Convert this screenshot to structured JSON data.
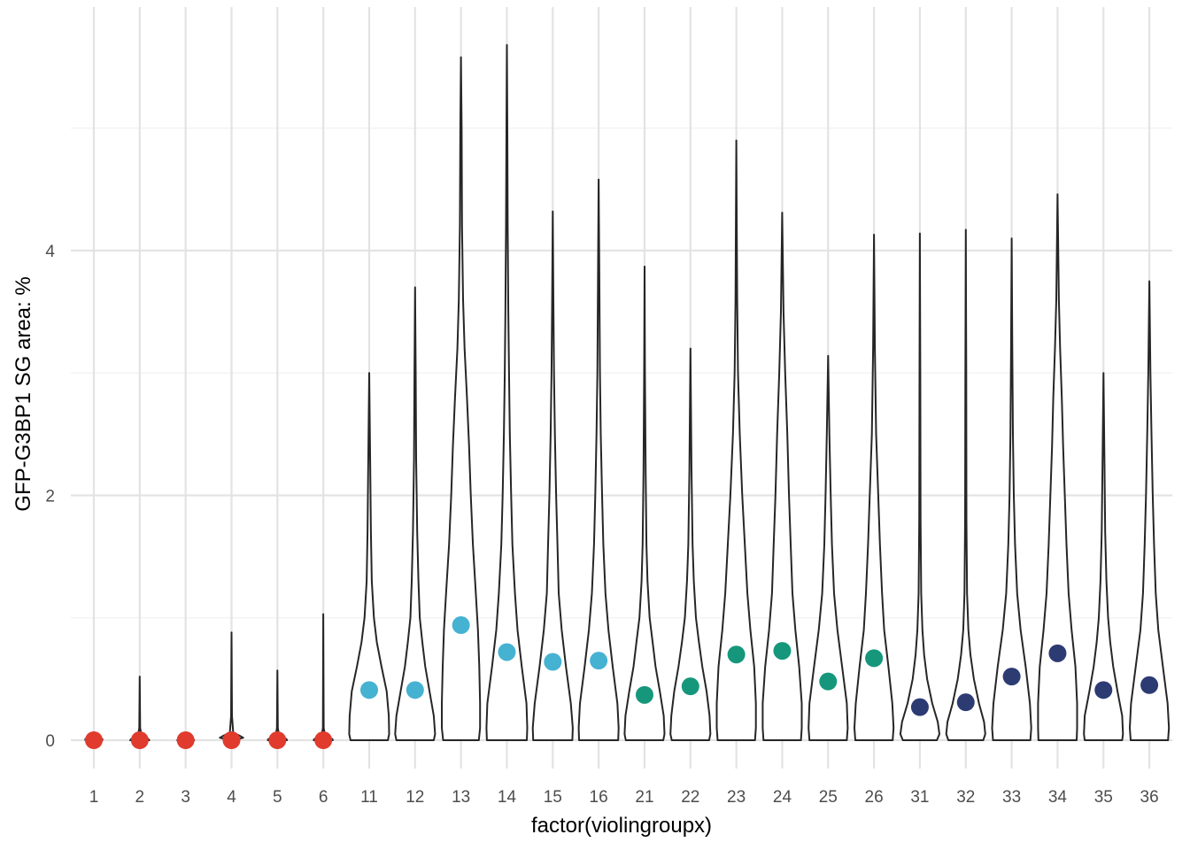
{
  "chart_data": {
    "type": "violin",
    "xlabel": "factor(violingroupx)",
    "ylabel": "GFP-G3BP1 SG area: %",
    "ylim": [
      -0.5,
      5.85
    ],
    "yticks": [
      0,
      2,
      4
    ],
    "grid": true,
    "legend": "none",
    "categories": [
      "1",
      "2",
      "3",
      "4",
      "5",
      "6",
      "11",
      "12",
      "13",
      "14",
      "15",
      "16",
      "21",
      "22",
      "23",
      "24",
      "25",
      "26",
      "31",
      "32",
      "33",
      "34",
      "35",
      "36"
    ],
    "colors": [
      "#e03b2d",
      "#e03b2d",
      "#e03b2d",
      "#e03b2d",
      "#e03b2d",
      "#e03b2d",
      "#46b2d2",
      "#46b2d2",
      "#46b2d2",
      "#46b2d2",
      "#46b2d2",
      "#46b2d2",
      "#16977c",
      "#16977c",
      "#16977c",
      "#16977c",
      "#16977c",
      "#16977c",
      "#2d3b73",
      "#2d3b73",
      "#2d3b73",
      "#2d3b73",
      "#2d3b73",
      "#2d3b73"
    ],
    "medians": [
      0.0,
      0.0,
      0.0,
      0.0,
      0.0,
      0.0,
      0.41,
      0.41,
      0.94,
      0.72,
      0.64,
      0.65,
      0.37,
      0.44,
      0.7,
      0.73,
      0.48,
      0.67,
      0.27,
      0.31,
      0.52,
      0.71,
      0.41,
      0.45
    ],
    "max": [
      0.02,
      0.52,
      0.01,
      0.88,
      0.57,
      1.03,
      3.0,
      3.7,
      5.58,
      5.68,
      4.32,
      4.58,
      3.87,
      3.2,
      4.9,
      4.31,
      3.14,
      4.13,
      4.14,
      4.17,
      4.1,
      4.46,
      3.0,
      3.75
    ],
    "profiles": [
      [
        [
          0,
          0.4
        ],
        [
          0.01,
          0.4
        ],
        [
          0.02,
          0.0
        ]
      ],
      [
        [
          0,
          0.45
        ],
        [
          0.01,
          0.4
        ],
        [
          0.02,
          0.1
        ],
        [
          0.1,
          0.02
        ],
        [
          0.52,
          0.0
        ]
      ],
      [
        [
          0,
          0.4
        ],
        [
          0.01,
          0.35
        ],
        [
          0.01,
          0.0
        ]
      ],
      [
        [
          0,
          0.12
        ],
        [
          0.02,
          0.55
        ],
        [
          0.04,
          0.35
        ],
        [
          0.06,
          0.08
        ],
        [
          0.2,
          0.02
        ],
        [
          0.88,
          0.0
        ]
      ],
      [
        [
          0,
          0.45
        ],
        [
          0.01,
          0.42
        ],
        [
          0.02,
          0.1
        ],
        [
          0.1,
          0.02
        ],
        [
          0.57,
          0.0
        ]
      ],
      [
        [
          0,
          0.45
        ],
        [
          0.01,
          0.42
        ],
        [
          0.02,
          0.1
        ],
        [
          0.1,
          0.02
        ],
        [
          1.03,
          0.0
        ]
      ],
      [
        [
          0,
          0.88
        ],
        [
          0.05,
          0.94
        ],
        [
          0.2,
          0.92
        ],
        [
          0.4,
          0.82
        ],
        [
          0.6,
          0.58
        ],
        [
          0.8,
          0.36
        ],
        [
          1.0,
          0.22
        ],
        [
          1.3,
          0.12
        ],
        [
          1.7,
          0.08
        ],
        [
          2.2,
          0.05
        ],
        [
          3.0,
          0.0
        ]
      ],
      [
        [
          0,
          0.88
        ],
        [
          0.05,
          0.94
        ],
        [
          0.2,
          0.88
        ],
        [
          0.4,
          0.68
        ],
        [
          0.6,
          0.48
        ],
        [
          0.8,
          0.34
        ],
        [
          1.0,
          0.22
        ],
        [
          1.3,
          0.16
        ],
        [
          1.7,
          0.1
        ],
        [
          2.3,
          0.05
        ],
        [
          3.0,
          0.03
        ],
        [
          3.7,
          0.0
        ]
      ],
      [
        [
          0,
          0.84
        ],
        [
          0.1,
          0.9
        ],
        [
          0.3,
          0.9
        ],
        [
          0.6,
          0.86
        ],
        [
          0.9,
          0.8
        ],
        [
          1.2,
          0.7
        ],
        [
          1.6,
          0.56
        ],
        [
          2.0,
          0.46
        ],
        [
          2.4,
          0.38
        ],
        [
          2.8,
          0.28
        ],
        [
          3.2,
          0.17
        ],
        [
          3.6,
          0.1
        ],
        [
          4.2,
          0.05
        ],
        [
          5.0,
          0.03
        ],
        [
          5.58,
          0.0
        ]
      ],
      [
        [
          0,
          0.94
        ],
        [
          0.1,
          0.96
        ],
        [
          0.3,
          0.92
        ],
        [
          0.6,
          0.7
        ],
        [
          0.9,
          0.5
        ],
        [
          1.2,
          0.38
        ],
        [
          1.6,
          0.26
        ],
        [
          2.0,
          0.2
        ],
        [
          2.5,
          0.14
        ],
        [
          3.0,
          0.1
        ],
        [
          3.5,
          0.07
        ],
        [
          4.2,
          0.04
        ],
        [
          5.0,
          0.02
        ],
        [
          5.68,
          0.0
        ]
      ],
      [
        [
          0,
          0.92
        ],
        [
          0.1,
          0.94
        ],
        [
          0.3,
          0.85
        ],
        [
          0.6,
          0.62
        ],
        [
          0.9,
          0.42
        ],
        [
          1.2,
          0.28
        ],
        [
          1.6,
          0.22
        ],
        [
          2.0,
          0.16
        ],
        [
          2.5,
          0.1
        ],
        [
          3.0,
          0.06
        ],
        [
          3.6,
          0.03
        ],
        [
          4.32,
          0.0
        ]
      ],
      [
        [
          0,
          0.92
        ],
        [
          0.1,
          0.94
        ],
        [
          0.3,
          0.88
        ],
        [
          0.6,
          0.66
        ],
        [
          0.9,
          0.46
        ],
        [
          1.2,
          0.32
        ],
        [
          1.6,
          0.22
        ],
        [
          2.0,
          0.16
        ],
        [
          2.5,
          0.1
        ],
        [
          3.0,
          0.06
        ],
        [
          3.8,
          0.03
        ],
        [
          4.58,
          0.0
        ]
      ],
      [
        [
          0,
          0.88
        ],
        [
          0.05,
          0.94
        ],
        [
          0.2,
          0.9
        ],
        [
          0.4,
          0.72
        ],
        [
          0.6,
          0.52
        ],
        [
          0.8,
          0.38
        ],
        [
          1.0,
          0.24
        ],
        [
          1.3,
          0.14
        ],
        [
          1.6,
          0.09
        ],
        [
          2.2,
          0.05
        ],
        [
          3.0,
          0.02
        ],
        [
          3.87,
          0.0
        ]
      ],
      [
        [
          0,
          0.88
        ],
        [
          0.05,
          0.94
        ],
        [
          0.2,
          0.9
        ],
        [
          0.4,
          0.76
        ],
        [
          0.6,
          0.56
        ],
        [
          0.8,
          0.4
        ],
        [
          1.0,
          0.26
        ],
        [
          1.3,
          0.16
        ],
        [
          1.6,
          0.1
        ],
        [
          2.2,
          0.05
        ],
        [
          3.2,
          0.0
        ]
      ],
      [
        [
          0,
          0.88
        ],
        [
          0.1,
          0.92
        ],
        [
          0.3,
          0.92
        ],
        [
          0.6,
          0.84
        ],
        [
          0.9,
          0.66
        ],
        [
          1.2,
          0.52
        ],
        [
          1.6,
          0.4
        ],
        [
          2.0,
          0.28
        ],
        [
          2.5,
          0.16
        ],
        [
          3.0,
          0.08
        ],
        [
          3.6,
          0.04
        ],
        [
          4.2,
          0.02
        ],
        [
          4.9,
          0.0
        ]
      ],
      [
        [
          0,
          0.88
        ],
        [
          0.1,
          0.92
        ],
        [
          0.3,
          0.92
        ],
        [
          0.6,
          0.8
        ],
        [
          0.9,
          0.62
        ],
        [
          1.2,
          0.48
        ],
        [
          1.6,
          0.4
        ],
        [
          2.0,
          0.32
        ],
        [
          2.5,
          0.24
        ],
        [
          3.0,
          0.14
        ],
        [
          3.5,
          0.06
        ],
        [
          4.31,
          0.0
        ]
      ],
      [
        [
          0,
          0.88
        ],
        [
          0.1,
          0.92
        ],
        [
          0.3,
          0.88
        ],
        [
          0.6,
          0.66
        ],
        [
          0.9,
          0.44
        ],
        [
          1.2,
          0.28
        ],
        [
          1.6,
          0.18
        ],
        [
          2.0,
          0.12
        ],
        [
          2.5,
          0.06
        ],
        [
          3.14,
          0.0
        ]
      ],
      [
        [
          0,
          0.88
        ],
        [
          0.1,
          0.92
        ],
        [
          0.3,
          0.86
        ],
        [
          0.6,
          0.68
        ],
        [
          0.9,
          0.48
        ],
        [
          1.2,
          0.38
        ],
        [
          1.6,
          0.28
        ],
        [
          2.0,
          0.2
        ],
        [
          2.5,
          0.1
        ],
        [
          3.2,
          0.04
        ],
        [
          4.13,
          0.0
        ]
      ],
      [
        [
          0,
          0.8
        ],
        [
          0.05,
          0.92
        ],
        [
          0.15,
          0.84
        ],
        [
          0.3,
          0.58
        ],
        [
          0.5,
          0.34
        ],
        [
          0.7,
          0.2
        ],
        [
          0.9,
          0.12
        ],
        [
          1.2,
          0.06
        ],
        [
          1.8,
          0.03
        ],
        [
          3.0,
          0.02
        ],
        [
          4.14,
          0.0
        ]
      ],
      [
        [
          0,
          0.82
        ],
        [
          0.05,
          0.92
        ],
        [
          0.15,
          0.86
        ],
        [
          0.3,
          0.62
        ],
        [
          0.5,
          0.38
        ],
        [
          0.7,
          0.22
        ],
        [
          0.9,
          0.12
        ],
        [
          1.2,
          0.06
        ],
        [
          1.8,
          0.03
        ],
        [
          3.0,
          0.02
        ],
        [
          4.17,
          0.0
        ]
      ],
      [
        [
          0,
          0.88
        ],
        [
          0.1,
          0.92
        ],
        [
          0.3,
          0.86
        ],
        [
          0.6,
          0.66
        ],
        [
          0.9,
          0.42
        ],
        [
          1.2,
          0.26
        ],
        [
          1.6,
          0.16
        ],
        [
          2.0,
          0.1
        ],
        [
          2.5,
          0.06
        ],
        [
          3.2,
          0.03
        ],
        [
          4.1,
          0.0
        ]
      ],
      [
        [
          0,
          0.9
        ],
        [
          0.1,
          0.92
        ],
        [
          0.3,
          0.92
        ],
        [
          0.6,
          0.84
        ],
        [
          0.9,
          0.66
        ],
        [
          1.2,
          0.52
        ],
        [
          1.6,
          0.42
        ],
        [
          2.0,
          0.34
        ],
        [
          2.4,
          0.26
        ],
        [
          2.8,
          0.2
        ],
        [
          3.2,
          0.12
        ],
        [
          3.6,
          0.06
        ],
        [
          4.46,
          0.0
        ]
      ],
      [
        [
          0,
          0.88
        ],
        [
          0.05,
          0.92
        ],
        [
          0.2,
          0.88
        ],
        [
          0.4,
          0.66
        ],
        [
          0.6,
          0.46
        ],
        [
          0.8,
          0.32
        ],
        [
          1.0,
          0.22
        ],
        [
          1.3,
          0.14
        ],
        [
          1.7,
          0.08
        ],
        [
          2.2,
          0.05
        ],
        [
          3.0,
          0.0
        ]
      ],
      [
        [
          0,
          0.88
        ],
        [
          0.1,
          0.92
        ],
        [
          0.3,
          0.86
        ],
        [
          0.6,
          0.64
        ],
        [
          0.9,
          0.42
        ],
        [
          1.2,
          0.3
        ],
        [
          1.6,
          0.22
        ],
        [
          2.0,
          0.16
        ],
        [
          2.5,
          0.1
        ],
        [
          3.0,
          0.05
        ],
        [
          3.75,
          0.0
        ]
      ]
    ]
  }
}
